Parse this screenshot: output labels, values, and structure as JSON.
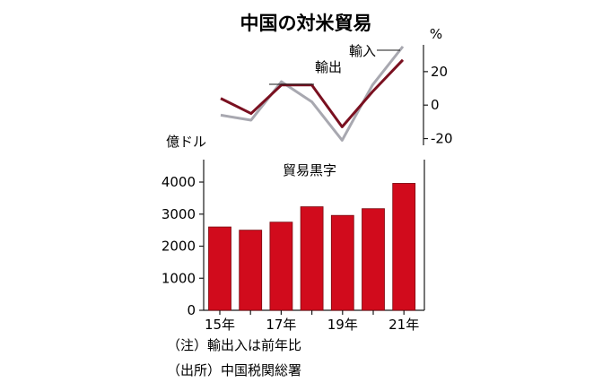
{
  "title": "中国の対米貿易",
  "notes": [
    "（注）輸出入は前年比",
    "（出所）中国税関総署"
  ],
  "colors": {
    "exports": "#7a1020",
    "imports": "#a8a8b0",
    "bar": "#d10b1c",
    "bar_edge": "#7a0a10",
    "axis": "#1a1a1a"
  },
  "chart_data": [
    {
      "type": "line",
      "title": "",
      "ylabel": "%",
      "ylim": [
        -24,
        36
      ],
      "yticks": [
        20,
        0,
        -20
      ],
      "ytick_labels": [
        "20",
        "0",
        "-20"
      ],
      "x": [
        2015,
        2016,
        2017,
        2018,
        2019,
        2020,
        2021
      ],
      "series": [
        {
          "name": "輸出",
          "values": [
            4,
            -5,
            12,
            12,
            -13,
            8,
            27
          ]
        },
        {
          "name": "輸入",
          "values": [
            -6,
            -9,
            14,
            2,
            -21,
            12,
            35
          ]
        }
      ]
    },
    {
      "type": "bar",
      "title": "貿易黒字",
      "ylabel": "億ドル",
      "ylim": [
        0,
        4700
      ],
      "yticks": [
        0,
        1000,
        2000,
        3000,
        4000
      ],
      "ytick_labels": [
        "0",
        "1000",
        "2000",
        "3000",
        "4000"
      ],
      "categories": [
        "15",
        "16",
        "17",
        "18",
        "19",
        "20",
        "21"
      ],
      "xtick_labels": [
        "15年",
        "",
        "17年",
        "",
        "19年",
        "",
        "21年"
      ],
      "values": [
        2600,
        2500,
        2750,
        3230,
        2960,
        3170,
        3960
      ]
    }
  ]
}
